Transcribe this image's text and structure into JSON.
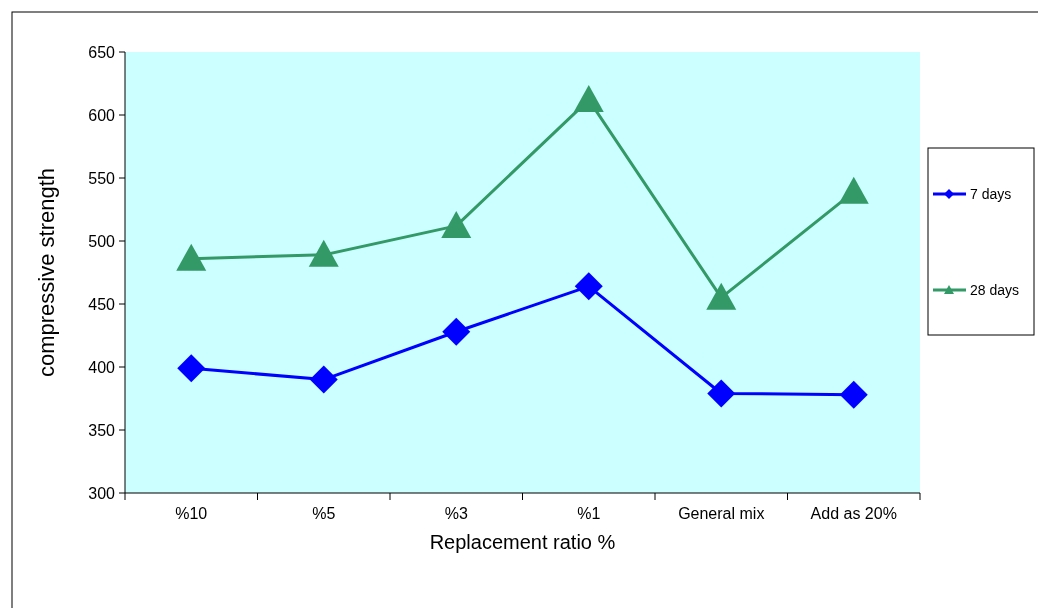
{
  "chart_data": {
    "type": "line",
    "xlabel": "Replacement ratio %",
    "ylabel": "compressive strength",
    "categories": [
      "%10",
      "%5",
      "%3",
      "%1",
      "General mix",
      "Add as 20%"
    ],
    "series": [
      {
        "name": "7 days",
        "color": "#0000ff",
        "marker": "diamond",
        "values": [
          399,
          390,
          428,
          464,
          379,
          378
        ]
      },
      {
        "name": "28 days",
        "color": "#339966",
        "marker": "triangle",
        "values": [
          486,
          489,
          512,
          612,
          455,
          539
        ]
      }
    ],
    "ylim": [
      300,
      650
    ],
    "yticks": [
      300,
      350,
      400,
      450,
      500,
      550,
      600,
      650
    ],
    "grid": false,
    "legend": "right"
  }
}
